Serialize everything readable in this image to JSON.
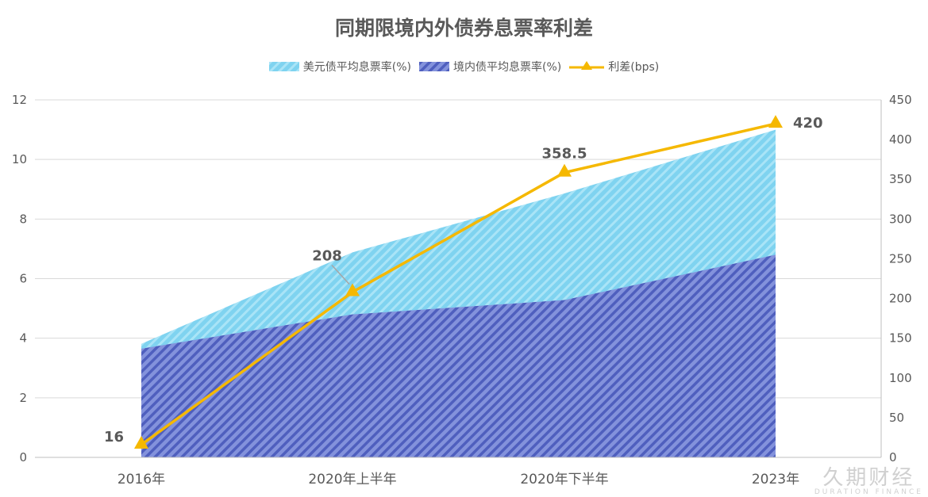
{
  "chart_data": {
    "type": "area",
    "title": "同期限境内外债券息票率利差",
    "categories": [
      "2016年",
      "2020年上半年",
      "2020年下半年",
      "2023年"
    ],
    "series": [
      {
        "name": "美元债平均息票率(%)",
        "type": "area",
        "axis": "left",
        "values": [
          3.81,
          6.88,
          8.86,
          11.0
        ],
        "color": "#7fd3f0"
      },
      {
        "name": "境内债平均息票率(%)",
        "type": "area",
        "axis": "left",
        "values": [
          3.65,
          4.8,
          5.28,
          6.8
        ],
        "color": "#5a6bc6"
      },
      {
        "name": "利差(bps)",
        "type": "line",
        "axis": "right",
        "marker": "triangle",
        "values": [
          16,
          208,
          358.5,
          420
        ],
        "labels": [
          "16",
          "208",
          "358.5",
          "420"
        ],
        "color": "#f5b800"
      }
    ],
    "y_left": {
      "range": [
        0,
        12
      ],
      "ticks": [
        "0",
        "2",
        "4",
        "6",
        "8",
        "10",
        "12"
      ]
    },
    "y_right": {
      "range": [
        0,
        450
      ],
      "ticks": [
        "0",
        "50",
        "100",
        "150",
        "200",
        "250",
        "300",
        "350",
        "400",
        "450"
      ]
    },
    "grid": true,
    "legend": "top"
  },
  "watermark": {
    "cn": "久期财经",
    "en": "DURATION FINANCE"
  }
}
